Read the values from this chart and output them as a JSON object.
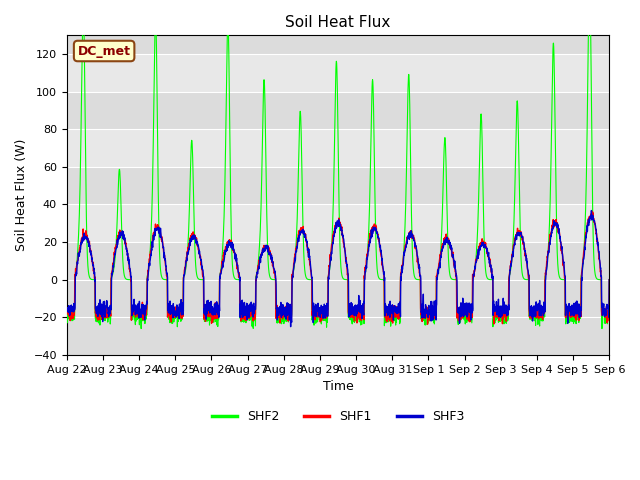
{
  "title": "Soil Heat Flux",
  "ylabel": "Soil Heat Flux (W)",
  "xlabel": "Time",
  "annotation": "DC_met",
  "ylim": [
    -40,
    130
  ],
  "yticks": [
    -40,
    -20,
    0,
    20,
    40,
    60,
    80,
    100,
    120
  ],
  "legend": [
    "SHF1",
    "SHF2",
    "SHF3"
  ],
  "colors": {
    "SHF1": "#FF0000",
    "SHF2": "#00FF00",
    "SHF3": "#0000CD"
  },
  "plot_bg": "#DCDCDC",
  "upper_bg": "#E8E8E8",
  "num_days": 15,
  "seed": 42,
  "date_labels": [
    "Aug 22",
    "Aug 23",
    "Aug 24",
    "Aug 25",
    "Aug 26",
    "Aug 27",
    "Aug 28",
    "Aug 29",
    "Aug 30",
    "Aug 31",
    "Sep 1",
    "Sep 2",
    "Sep 3",
    "Sep 4",
    "Sep 5",
    "Sep 6"
  ]
}
